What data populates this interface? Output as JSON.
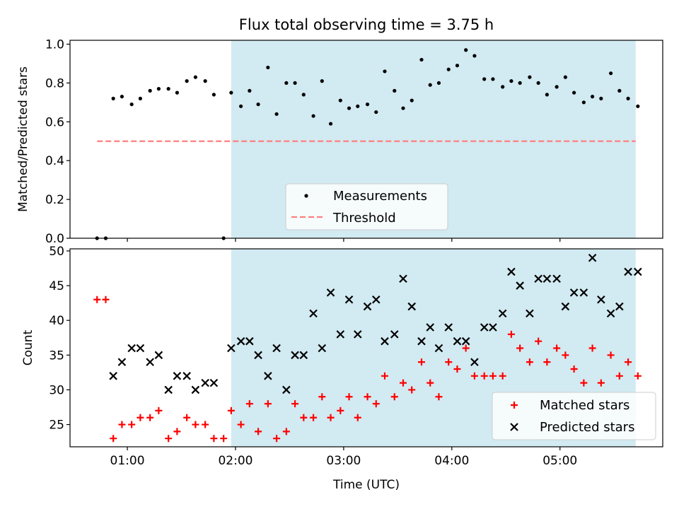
{
  "figure_title": "Flux total observing time = 3.75 h",
  "colors": {
    "shade": "#add8e6",
    "measurement": "#000000",
    "threshold": "#ff7f7f",
    "matched": "#ff0000",
    "predicted": "#000000"
  },
  "chart_data": [
    {
      "type": "scatter",
      "title": "Flux total observing time = 3.75 h",
      "xlabel": "",
      "ylabel": "Matched/Predicted stars",
      "xlim_hours": [
        0.47,
        5.95
      ],
      "ylim": [
        0,
        1.02
      ],
      "y_ticks": [
        0.0,
        0.2,
        0.4,
        0.6,
        0.8,
        1.0
      ],
      "y_tick_labels": [
        "0.0",
        "0.2",
        "0.4",
        "0.6",
        "0.8",
        "1.0"
      ],
      "shaded_span_hours": [
        1.96,
        5.7
      ],
      "legend": {
        "position": "lower center",
        "entries": [
          "Measurements",
          "Threshold"
        ]
      },
      "threshold": {
        "name": "Threshold",
        "value": 0.5,
        "x_range_hours": [
          0.72,
          5.7
        ]
      },
      "series": [
        {
          "name": "Measurements",
          "marker": "dot",
          "x_hours": [
            0.72,
            0.8,
            0.87,
            0.95,
            1.04,
            1.12,
            1.21,
            1.29,
            1.38,
            1.46,
            1.55,
            1.63,
            1.72,
            1.8,
            1.89,
            1.96,
            2.05,
            2.13,
            2.21,
            2.3,
            2.38,
            2.47,
            2.55,
            2.63,
            2.72,
            2.8,
            2.88,
            2.97,
            3.05,
            3.13,
            3.22,
            3.3,
            3.38,
            3.47,
            3.55,
            3.63,
            3.72,
            3.8,
            3.88,
            3.97,
            4.05,
            4.13,
            4.21,
            4.3,
            4.38,
            4.47,
            4.55,
            4.63,
            4.72,
            4.8,
            4.88,
            4.97,
            5.05,
            5.13,
            5.22,
            5.3,
            5.38,
            5.47,
            5.55,
            5.63,
            5.72
          ],
          "y": [
            0.0,
            0.0,
            0.72,
            0.73,
            0.69,
            0.72,
            0.76,
            0.77,
            0.77,
            0.75,
            0.81,
            0.83,
            0.81,
            0.74,
            0.0,
            0.75,
            0.68,
            0.76,
            0.69,
            0.88,
            0.64,
            0.8,
            0.8,
            0.74,
            0.63,
            0.81,
            0.59,
            0.71,
            0.67,
            0.68,
            0.69,
            0.65,
            0.86,
            0.76,
            0.67,
            0.71,
            0.92,
            0.79,
            0.8,
            0.87,
            0.89,
            0.97,
            0.94,
            0.82,
            0.82,
            0.78,
            0.81,
            0.8,
            0.83,
            0.8,
            0.74,
            0.78,
            0.83,
            0.75,
            0.7,
            0.73,
            0.72,
            0.85,
            0.76,
            0.72,
            0.68
          ]
        }
      ]
    },
    {
      "type": "scatter",
      "title": "",
      "xlabel": "Time (UTC)",
      "ylabel": "Count",
      "xlim_hours": [
        0.47,
        5.95
      ],
      "ylim": [
        21.8,
        50.3
      ],
      "y_ticks": [
        25,
        30,
        35,
        40,
        45,
        50
      ],
      "y_tick_labels": [
        "25",
        "30",
        "35",
        "40",
        "45",
        "50"
      ],
      "x_ticks_hours": [
        1,
        2,
        3,
        4,
        5
      ],
      "x_tick_labels": [
        "01:00",
        "02:00",
        "03:00",
        "04:00",
        "05:00"
      ],
      "shaded_span_hours": [
        1.96,
        5.7
      ],
      "legend": {
        "position": "lower right",
        "entries": [
          "Matched stars",
          "Predicted stars"
        ]
      },
      "series": [
        {
          "name": "Matched stars",
          "marker": "plus",
          "x_hours": [
            0.72,
            0.8,
            0.87,
            0.95,
            1.04,
            1.12,
            1.21,
            1.29,
            1.38,
            1.46,
            1.55,
            1.63,
            1.72,
            1.8,
            1.89,
            1.96,
            2.05,
            2.13,
            2.21,
            2.3,
            2.38,
            2.47,
            2.55,
            2.63,
            2.72,
            2.8,
            2.88,
            2.97,
            3.05,
            3.13,
            3.22,
            3.3,
            3.38,
            3.47,
            3.55,
            3.63,
            3.72,
            3.8,
            3.88,
            3.97,
            4.05,
            4.13,
            4.21,
            4.3,
            4.38,
            4.47,
            4.55,
            4.63,
            4.72,
            4.8,
            4.88,
            4.97,
            5.05,
            5.13,
            5.22,
            5.3,
            5.38,
            5.47,
            5.55,
            5.63,
            5.72
          ],
          "y": [
            43,
            43,
            23,
            25,
            25,
            26,
            26,
            27,
            23,
            24,
            26,
            25,
            25,
            23,
            23,
            27,
            25,
            28,
            24,
            28,
            23,
            24,
            28,
            26,
            26,
            29,
            26,
            27,
            29,
            26,
            29,
            28,
            32,
            29,
            31,
            30,
            34,
            31,
            29,
            34,
            33,
            36,
            32,
            32,
            32,
            32,
            38,
            36,
            34,
            37,
            34,
            36,
            35,
            33,
            31,
            36,
            31,
            35,
            32,
            34,
            32
          ]
        },
        {
          "name": "Predicted stars",
          "marker": "x",
          "x_hours": [
            0.87,
            0.95,
            1.04,
            1.12,
            1.21,
            1.29,
            1.38,
            1.46,
            1.55,
            1.63,
            1.72,
            1.8,
            1.96,
            2.05,
            2.13,
            2.21,
            2.3,
            2.38,
            2.47,
            2.55,
            2.63,
            2.72,
            2.8,
            2.88,
            2.97,
            3.05,
            3.13,
            3.22,
            3.3,
            3.38,
            3.47,
            3.55,
            3.63,
            3.72,
            3.8,
            3.88,
            3.97,
            4.05,
            4.13,
            4.21,
            4.3,
            4.38,
            4.47,
            4.55,
            4.63,
            4.72,
            4.8,
            4.88,
            4.97,
            5.05,
            5.13,
            5.22,
            5.3,
            5.38,
            5.47,
            5.55,
            5.63,
            5.72
          ],
          "y": [
            32,
            34,
            36,
            36,
            34,
            35,
            30,
            32,
            32,
            30,
            31,
            31,
            36,
            37,
            37,
            35,
            32,
            36,
            30,
            35,
            35,
            41,
            36,
            44,
            38,
            43,
            38,
            42,
            43,
            37,
            38,
            46,
            42,
            37,
            39,
            36,
            39,
            37,
            37,
            34,
            39,
            39,
            41,
            47,
            45,
            41,
            46,
            46,
            46,
            42,
            44,
            44,
            49,
            43,
            41,
            42,
            47,
            47
          ]
        }
      ]
    }
  ]
}
